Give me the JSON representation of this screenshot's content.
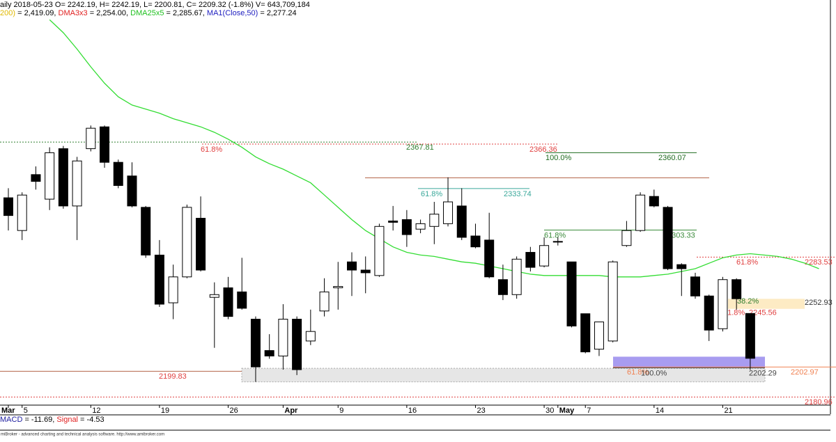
{
  "chart_data": {
    "type": "candlestick",
    "header": "aily 2018-05-23 O= 2242.19, H= 2242.19, L= 2200.81, C= 2209.32 (-1.8%) V= 643,709,184",
    "legend": [
      {
        "name": "200)",
        "color": "#e0b800",
        "text": " = 2,419.09, "
      },
      {
        "name": "DMA3x3",
        "color": "#e02020",
        "text": " = 2,254.00, "
      },
      {
        "name": "DMA25x5",
        "color": "#20c020",
        "text": " = 2,285.67, "
      },
      {
        "name": "MA1(Close,50)",
        "color": "#2020c0",
        "text": " = 2,277.24"
      }
    ],
    "categories": [
      "Mar",
      "5",
      null,
      null,
      null,
      null,
      "12",
      null,
      null,
      null,
      null,
      "19",
      null,
      null,
      null,
      null,
      "26",
      null,
      null,
      null,
      "Apr",
      null,
      null,
      null,
      "9",
      null,
      null,
      null,
      null,
      "16",
      null,
      null,
      null,
      null,
      "23",
      null,
      null,
      null,
      null,
      "30",
      "May",
      null,
      "7",
      null,
      null,
      null,
      null,
      "14",
      null,
      null,
      null,
      null,
      "21",
      null,
      null,
      null,
      null,
      null,
      null,
      null
    ],
    "open": [
      2327,
      2303,
      2344,
      2326,
      2363,
      2321,
      2363,
      2379,
      2353,
      2343,
      2320,
      2285,
      2250,
      2269,
      2312,
      2254,
      2261,
      2258,
      2238,
      2215,
      2211,
      2238,
      2222,
      2244,
      2261,
      2280,
      2274,
      2270,
      2310,
      2311,
      2304,
      2306,
      2308,
      2321,
      2299,
      2296,
      2267,
      2256,
      2287,
      2277,
      2295,
      2280,
      2242,
      2216,
      2222,
      2292,
      2303,
      2328,
      2320,
      2278,
      2269,
      2255,
      2231,
      2267,
      2242.19,
      null,
      null,
      null,
      null,
      null
    ],
    "high": [
      2334,
      2331,
      2350,
      2364,
      2365,
      2357,
      2380,
      2380,
      2355,
      2353,
      2321,
      2296,
      2278,
      2322,
      2328,
      2265,
      2269,
      2283,
      2240,
      2227,
      2249,
      2240,
      2245,
      2268,
      2280,
      2287,
      2284,
      2308,
      2321,
      2318,
      2311,
      2324,
      2342,
      2334,
      2308,
      2316,
      2278,
      2284,
      2291,
      2298,
      2298,
      2280,
      2242,
      2236,
      2281,
      2310,
      2331,
      2333,
      2321,
      2279,
      2272,
      2256,
      2269,
      2268,
      2242.19,
      null,
      null,
      null,
      null,
      null
    ],
    "low": [
      2303,
      2296,
      2333,
      2318,
      2319,
      2296,
      2361,
      2349,
      2334,
      2320,
      2283,
      2247,
      2238,
      2268,
      2273,
      2217,
      2238,
      2245,
      2192,
      2209,
      2201,
      2197,
      2219,
      2240,
      2245,
      2255,
      2257,
      2269,
      2303,
      2291,
      2301,
      2293,
      2306,
      2296,
      2290,
      2268,
      2252,
      2253,
      2273,
      2276,
      2292,
      2232,
      2213,
      2211,
      2221,
      2291,
      2302,
      2320,
      2274,
      2255,
      2253,
      2222,
      2229,
      2245,
      2200.81,
      null,
      null,
      null,
      null,
      null
    ],
    "close": [
      2314,
      2329,
      2339,
      2360,
      2321,
      2354,
      2378,
      2353,
      2336,
      2321,
      2285,
      2249,
      2269,
      2320,
      2274,
      2256,
      2240,
      2246,
      2203,
      2211,
      2238,
      2201,
      2229,
      2258,
      2262,
      2274,
      2272,
      2306,
      2309,
      2300,
      2308,
      2315,
      2324,
      2298,
      2291,
      2269,
      2256,
      2282,
      2276,
      2292,
      2295,
      2233,
      2214,
      2236,
      2280,
      2303,
      2329,
      2321,
      2275,
      2275,
      2255,
      2230,
      2267,
      2253,
      2209.32,
      null,
      null,
      null,
      null,
      null
    ],
    "up_color": "#ffffff",
    "down_color": "#000000",
    "series": [
      {
        "name": "DMA25x5",
        "color": "#33dd33",
        "values": [
          null,
          null,
          null,
          2457.5,
          2448,
          2436,
          2423,
          2411,
          2401,
          2395,
          2392,
          2389,
          2385,
          2382,
          2379,
          2375,
          2370,
          2364,
          2357,
          2352,
          2348,
          2343,
          2338,
          2329,
          2320,
          2311,
          2303,
          2297,
          2291,
          2287,
          2285,
          2284,
          2282,
          2280,
          2279,
          2277,
          2275,
          2273,
          2271,
          2270,
          2270,
          2270,
          2270,
          2270,
          2269,
          2269,
          2269,
          2270,
          2271,
          2273,
          2275,
          2279,
          2283,
          2285,
          2286,
          2285,
          2284,
          2282,
          2279,
          2275
        ]
      }
    ],
    "ylim": [
      2175,
      2472
    ],
    "levels": [
      {
        "price": 2367.81,
        "color": "#2e7d2e",
        "dash": true
      },
      {
        "price": 2366.36,
        "color": "#e04040",
        "dash": true,
        "pct": "61.8%"
      },
      {
        "price": 2360.07,
        "color": "#1f6b1f",
        "pct": "100.0%"
      },
      {
        "price": 2341.6,
        "color": "#b5654a",
        "labeled": false
      },
      {
        "price": 2333.74,
        "color": "#3aa89a",
        "pct": "61.8%"
      },
      {
        "price": 2303.33,
        "color": "#3a8a3a",
        "pct": "61.8%"
      },
      {
        "price": 2283.53,
        "color": "#e04040",
        "dash": true,
        "pct": "61.8%"
      },
      {
        "price": 2202.97,
        "color": "#f08050",
        "pct": "61.8%"
      },
      {
        "price": 2202.29,
        "color": "#444444",
        "pct": "100.0%"
      },
      {
        "price": 2199.83,
        "color": "#b5654a",
        "label_color": "#e04040"
      },
      {
        "price": 2180.96,
        "color": "#e04040",
        "dash": true
      }
    ],
    "zones": [
      {
        "top": 2252.93,
        "bottom": 2245.56,
        "color": "#fdebc4",
        "pct": "38.2%",
        "bottom_pct": "61.8%"
      },
      {
        "top": 2210.5,
        "bottom": 2202.3,
        "color": "#a89cf0"
      },
      {
        "top": 2202,
        "bottom": 2192,
        "color": "#e6e6e6"
      }
    ],
    "macd": [
      {
        "name": "MACD",
        "color": "#2020a0",
        "text": " = -11.69, "
      },
      {
        "name": "Signal",
        "color": "#e02020",
        "text": " = -4.53"
      }
    ],
    "footer": "miBroker - advanced charting and technical analysis software. http://www.amibroker.com"
  }
}
